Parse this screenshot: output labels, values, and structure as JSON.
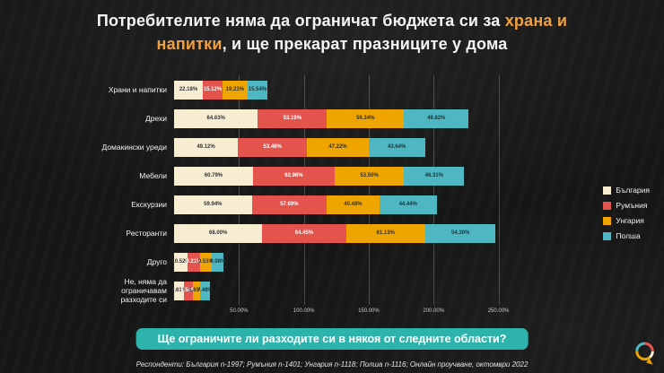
{
  "title": {
    "line1_text": "Потребителите няма да ограничат бюджета си за ",
    "line1_highlight": "храна и",
    "line2_highlight": "напитки",
    "line2_text": ", и ще прекарат празниците у дома"
  },
  "banner": {
    "text": "Ще ограничите ли разходите си в някоя от следните области?"
  },
  "footnote": {
    "text": "Респонденти: България n-1997; Румъния n-1401; Унгария n-1118; Полша n-1116;  Онлайн проучване, октомври 2022"
  },
  "colors": {
    "background": "#161616",
    "title_text": "#f5f5f5",
    "title_highlight": "#f2a03d",
    "banner_background": "#2eb3ac",
    "gridline": "rgba(255,255,255,0.22)"
  },
  "chart_data": {
    "type": "bar",
    "variant": "horizontal-stacked",
    "title": "Ще ограничите ли разходите си в някоя от следните области?",
    "categories": [
      "Храни и напитки",
      "Дрехи",
      "Домакински уреди",
      "Мебели",
      "Екскурзии",
      "Ресторанти",
      "Друго",
      "Не, няма да ограничавам разходите си"
    ],
    "series": [
      {
        "key": "bulgaria",
        "name": "България",
        "color": "#f6edd2",
        "label_color": "#333333",
        "values": [
          22.18,
          64.63,
          49.12,
          60.79,
          59.94,
          68.0,
          10.52,
          7.61
        ]
      },
      {
        "key": "romania",
        "name": "Румъния",
        "color": "#e4544c",
        "label_color": "#ffffff",
        "values": [
          15.12,
          53.19,
          53.46,
          62.96,
          57.69,
          64.45,
          9.21,
          6.58
        ]
      },
      {
        "key": "hungary",
        "name": "Унгария",
        "color": "#efa400",
        "label_color": "#333333",
        "values": [
          19.23,
          59.34,
          47.22,
          53.5,
          40.48,
          61.13,
          9.53,
          5.85
        ]
      },
      {
        "key": "poland",
        "name": "Полша",
        "color": "#4fb7c2",
        "label_color": "#14333a",
        "values": [
          15.54,
          49.82,
          43.64,
          46.31,
          44.44,
          54.3,
          9.08,
          7.48
        ]
      }
    ],
    "x_ticks": [
      "50.00%",
      "100.00%",
      "150.00%",
      "200.00%",
      "250.00%"
    ],
    "x_tick_values": [
      50,
      100,
      150,
      200,
      250
    ],
    "xlim": [
      0,
      260
    ],
    "grid": true,
    "legend_position": "right",
    "value_format": "percent_2dp"
  }
}
